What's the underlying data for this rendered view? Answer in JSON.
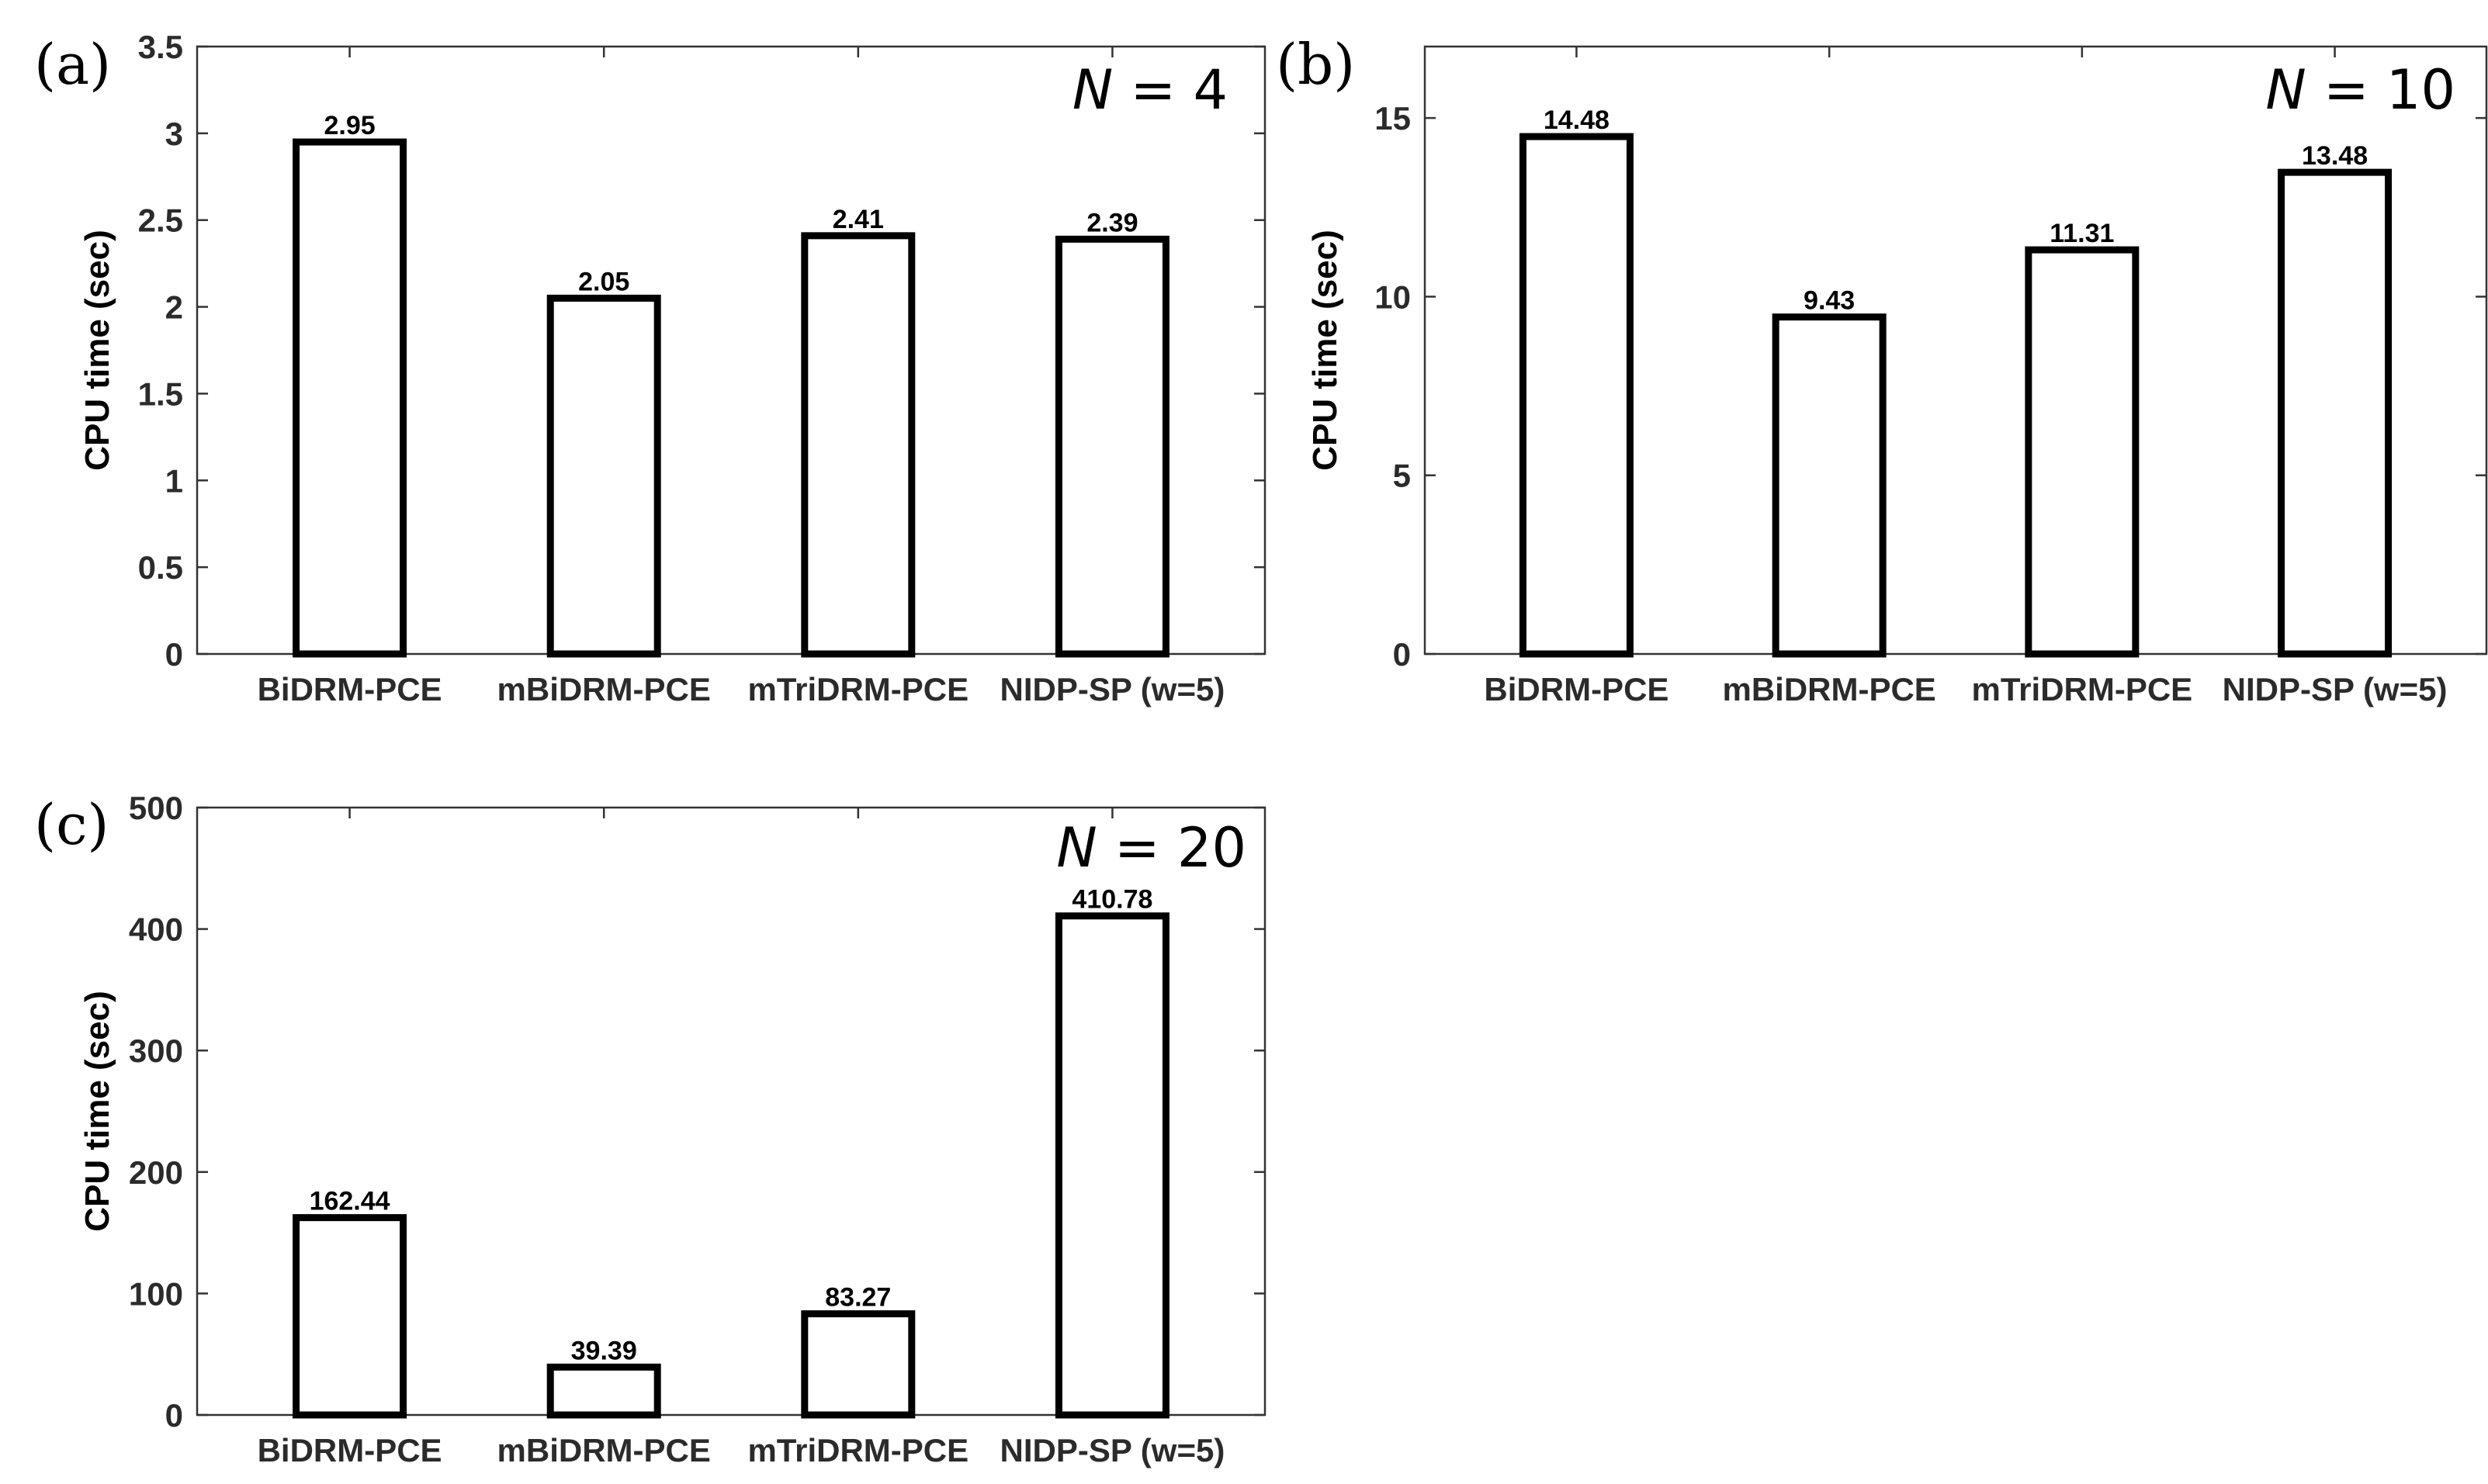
{
  "chart_data": [
    {
      "type": "bar",
      "panel_label": "(a)",
      "n_label": {
        "symbol": "N",
        "text": " = 4"
      },
      "title": "",
      "xlabel": "",
      "ylabel": "CPU time (sec)",
      "categories": [
        "BiDRM-PCE",
        "mBiDRM-PCE",
        "mTriDRM-PCE",
        "NIDP-SP (w=5)"
      ],
      "values": [
        2.95,
        2.05,
        2.41,
        2.39
      ],
      "value_labels": [
        "2.95",
        "2.05",
        "2.41",
        "2.39"
      ],
      "ylim": [
        0,
        3.5
      ],
      "yticks": [
        0,
        0.5,
        1,
        1.5,
        2,
        2.5,
        3,
        3.5
      ],
      "ytick_labels": [
        "0",
        "0.5",
        "1",
        "1.5",
        "2",
        "2.5",
        "3",
        "3.5"
      ],
      "grid": false
    },
    {
      "type": "bar",
      "panel_label": "(b)",
      "n_label": {
        "symbol": "N",
        "text": " = 10"
      },
      "title": "",
      "xlabel": "",
      "ylabel": "CPU time (sec)",
      "categories": [
        "BiDRM-PCE",
        "mBiDRM-PCE",
        "mTriDRM-PCE",
        "NIDP-SP (w=5)"
      ],
      "values": [
        14.48,
        9.43,
        11.31,
        13.48
      ],
      "value_labels": [
        "14.48",
        "9.43",
        "11.31",
        "13.48"
      ],
      "ylim": [
        0,
        17
      ],
      "yticks": [
        0,
        5,
        10,
        15
      ],
      "ytick_labels": [
        "0",
        "5",
        "10",
        "15"
      ],
      "grid": false
    },
    {
      "type": "bar",
      "panel_label": "(c)",
      "n_label": {
        "symbol": "N",
        "text": " = 20"
      },
      "title": "",
      "xlabel": "",
      "ylabel": "CPU time (sec)",
      "categories": [
        "BiDRM-PCE",
        "mBiDRM-PCE",
        "mTriDRM-PCE",
        "NIDP-SP (w=5)"
      ],
      "values": [
        162.44,
        39.39,
        83.27,
        410.78
      ],
      "value_labels": [
        "162.44",
        "39.39",
        "83.27",
        "410.78"
      ],
      "ylim": [
        0,
        500
      ],
      "yticks": [
        0,
        100,
        200,
        300,
        400,
        500
      ],
      "ytick_labels": [
        "0",
        "100",
        "200",
        "300",
        "400",
        "500"
      ],
      "grid": false
    }
  ]
}
